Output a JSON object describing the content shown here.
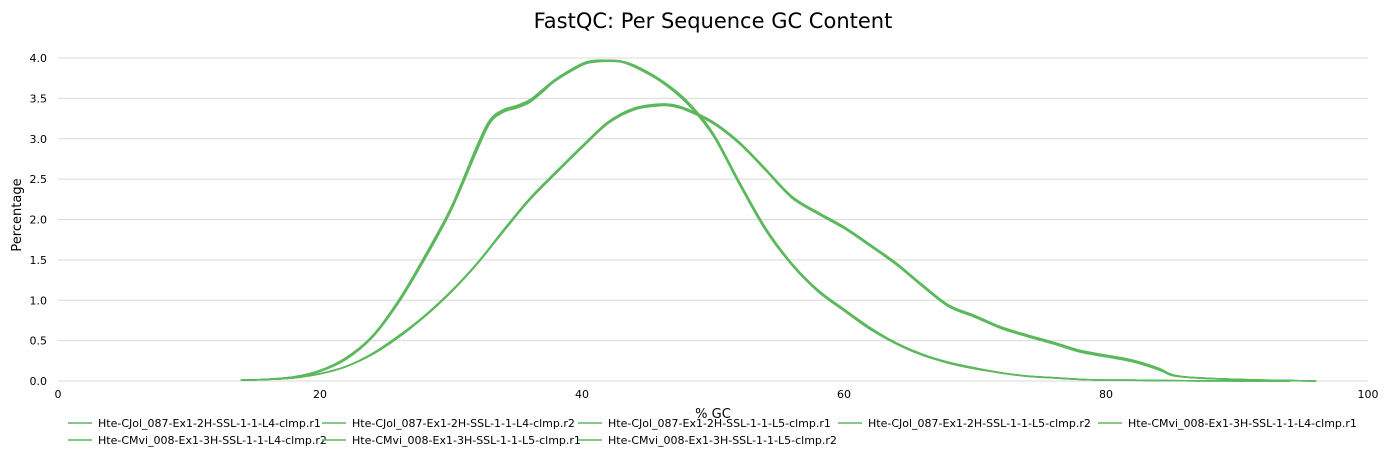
{
  "chart_data": {
    "type": "line",
    "title": "FastQC: Per Sequence GC Content",
    "xlabel": "% GC",
    "ylabel": "Percentage",
    "xlim": [
      0,
      100
    ],
    "ylim": [
      0,
      4.0
    ],
    "xticks": [
      "0",
      "20",
      "40",
      "60",
      "80",
      "100"
    ],
    "yticks": [
      "0.0",
      "0.5",
      "1.0",
      "1.5",
      "2.0",
      "2.5",
      "3.0",
      "3.5",
      "4.0"
    ],
    "grid": "horizontal",
    "legend_position": "bottom",
    "series": [
      {
        "name": "Hte-CJol_087-Ex1-2H-SSL-1-1-L4-clmp.r1",
        "color": "#5cb85c",
        "x": [
          14,
          16,
          18,
          20,
          22,
          24,
          26,
          28,
          30,
          32,
          33,
          34,
          35,
          36,
          37,
          38,
          40,
          41,
          42,
          43,
          44,
          46,
          48,
          50,
          52,
          54,
          56,
          58,
          60,
          62,
          64,
          66,
          68,
          70,
          72,
          74,
          76,
          78,
          80,
          82,
          84,
          86,
          88,
          90,
          92,
          94
        ],
        "y": [
          0.01,
          0.02,
          0.05,
          0.12,
          0.28,
          0.55,
          0.98,
          1.52,
          2.12,
          2.88,
          3.22,
          3.35,
          3.4,
          3.47,
          3.6,
          3.73,
          3.92,
          3.96,
          3.97,
          3.96,
          3.9,
          3.72,
          3.45,
          3.05,
          2.45,
          1.88,
          1.45,
          1.12,
          0.88,
          0.65,
          0.46,
          0.32,
          0.23,
          0.16,
          0.1,
          0.06,
          0.04,
          0.02,
          0.01,
          0.01,
          0.005,
          0.003,
          0.002,
          0.001,
          0.001,
          0.0
        ]
      },
      {
        "name": "Hte-CJol_087-Ex1-2H-SSL-1-1-L4-clmp.r2",
        "color": "#5cb85c",
        "x": [
          14,
          16,
          18,
          20,
          22,
          24,
          26,
          28,
          30,
          32,
          33,
          34,
          35,
          36,
          37,
          38,
          40,
          41,
          42,
          43,
          44,
          46,
          48,
          50,
          52,
          54,
          56,
          58,
          60,
          62,
          64,
          66,
          68,
          70,
          72,
          74,
          76,
          78,
          80,
          82,
          84,
          86,
          88,
          90,
          92,
          94
        ],
        "y": [
          0.01,
          0.02,
          0.05,
          0.13,
          0.29,
          0.56,
          1.0,
          1.55,
          2.15,
          2.92,
          3.24,
          3.36,
          3.41,
          3.48,
          3.61,
          3.74,
          3.93,
          3.97,
          3.97,
          3.96,
          3.91,
          3.73,
          3.47,
          3.07,
          2.47,
          1.9,
          1.46,
          1.13,
          0.89,
          0.66,
          0.47,
          0.33,
          0.23,
          0.16,
          0.1,
          0.06,
          0.04,
          0.02,
          0.01,
          0.01,
          0.005,
          0.003,
          0.002,
          0.001,
          0.001,
          0.0
        ]
      },
      {
        "name": "Hte-CJol_087-Ex1-2H-SSL-1-1-L5-clmp.r1",
        "color": "#5cb85c",
        "x": [
          14,
          16,
          18,
          20,
          22,
          24,
          26,
          28,
          30,
          32,
          33,
          34,
          35,
          36,
          37,
          38,
          40,
          41,
          42,
          43,
          44,
          46,
          48,
          50,
          52,
          54,
          56,
          58,
          60,
          62,
          64,
          66,
          68,
          70,
          72,
          74,
          76,
          78,
          80,
          82,
          84,
          86,
          88,
          90,
          92,
          94
        ],
        "y": [
          0.01,
          0.02,
          0.05,
          0.12,
          0.27,
          0.54,
          0.97,
          1.51,
          2.11,
          2.86,
          3.2,
          3.33,
          3.38,
          3.45,
          3.58,
          3.72,
          3.91,
          3.95,
          3.96,
          3.95,
          3.89,
          3.71,
          3.44,
          3.04,
          2.44,
          1.87,
          1.44,
          1.11,
          0.87,
          0.64,
          0.46,
          0.32,
          0.22,
          0.15,
          0.1,
          0.06,
          0.04,
          0.02,
          0.01,
          0.01,
          0.005,
          0.003,
          0.002,
          0.001,
          0.001,
          0.0
        ]
      },
      {
        "name": "Hte-CJol_087-Ex1-2H-SSL-1-1-L5-clmp.r2",
        "color": "#5cb85c",
        "x": [
          14,
          16,
          18,
          20,
          22,
          24,
          26,
          28,
          30,
          32,
          33,
          34,
          35,
          36,
          37,
          38,
          40,
          41,
          42,
          43,
          44,
          46,
          48,
          50,
          52,
          54,
          56,
          58,
          60,
          62,
          64,
          66,
          68,
          70,
          72,
          74,
          76,
          78,
          80,
          82,
          84,
          86,
          88,
          90,
          92,
          94
        ],
        "y": [
          0.01,
          0.02,
          0.05,
          0.13,
          0.28,
          0.55,
          0.99,
          1.54,
          2.14,
          2.9,
          3.23,
          3.35,
          3.4,
          3.47,
          3.6,
          3.73,
          3.92,
          3.96,
          3.97,
          3.96,
          3.9,
          3.72,
          3.46,
          3.06,
          2.46,
          1.89,
          1.45,
          1.12,
          0.88,
          0.65,
          0.47,
          0.33,
          0.23,
          0.16,
          0.1,
          0.06,
          0.04,
          0.02,
          0.01,
          0.01,
          0.005,
          0.003,
          0.002,
          0.001,
          0.001,
          0.0
        ]
      },
      {
        "name": "Hte-CMvi_008-Ex1-3H-SSL-1-1-L4-clmp.r1",
        "color": "#5cb85c",
        "x": [
          14,
          16,
          18,
          20,
          22,
          24,
          26,
          28,
          30,
          32,
          34,
          36,
          38,
          40,
          42,
          44,
          46,
          47,
          48,
          50,
          52,
          54,
          56,
          58,
          60,
          62,
          64,
          66,
          68,
          70,
          72,
          74,
          76,
          78,
          80,
          82,
          84,
          85,
          86,
          88,
          90,
          92,
          94,
          96
        ],
        "y": [
          0.01,
          0.02,
          0.04,
          0.09,
          0.18,
          0.33,
          0.55,
          0.8,
          1.1,
          1.45,
          1.86,
          2.25,
          2.58,
          2.9,
          3.2,
          3.37,
          3.42,
          3.41,
          3.36,
          3.2,
          2.95,
          2.62,
          2.28,
          2.08,
          1.9,
          1.68,
          1.45,
          1.18,
          0.93,
          0.8,
          0.66,
          0.56,
          0.47,
          0.37,
          0.31,
          0.25,
          0.15,
          0.08,
          0.05,
          0.03,
          0.02,
          0.01,
          0.005,
          0.0
        ]
      },
      {
        "name": "Hte-CMvi_008-Ex1-3H-SSL-1-1-L4-clmp.r2",
        "color": "#5cb85c",
        "x": [
          14,
          16,
          18,
          20,
          22,
          24,
          26,
          28,
          30,
          32,
          34,
          36,
          38,
          40,
          42,
          44,
          46,
          47,
          48,
          50,
          52,
          54,
          56,
          58,
          60,
          62,
          64,
          66,
          68,
          70,
          72,
          74,
          76,
          78,
          80,
          82,
          84,
          85,
          86,
          88,
          90,
          92,
          94,
          96
        ],
        "y": [
          0.01,
          0.02,
          0.04,
          0.09,
          0.18,
          0.34,
          0.56,
          0.81,
          1.11,
          1.46,
          1.87,
          2.26,
          2.59,
          2.91,
          3.21,
          3.38,
          3.43,
          3.42,
          3.37,
          3.21,
          2.96,
          2.63,
          2.29,
          2.09,
          1.91,
          1.69,
          1.46,
          1.19,
          0.94,
          0.81,
          0.67,
          0.57,
          0.48,
          0.38,
          0.32,
          0.26,
          0.16,
          0.08,
          0.05,
          0.03,
          0.02,
          0.01,
          0.005,
          0.0
        ]
      },
      {
        "name": "Hte-CMvi_008-Ex1-3H-SSL-1-1-L5-clmp.r1",
        "color": "#5cb85c",
        "x": [
          14,
          16,
          18,
          20,
          22,
          24,
          26,
          28,
          30,
          32,
          34,
          36,
          38,
          40,
          42,
          44,
          46,
          47,
          48,
          50,
          52,
          54,
          56,
          58,
          60,
          62,
          64,
          66,
          68,
          70,
          72,
          74,
          76,
          78,
          80,
          82,
          84,
          85,
          86,
          88,
          90,
          92,
          94,
          96
        ],
        "y": [
          0.01,
          0.02,
          0.04,
          0.09,
          0.18,
          0.33,
          0.54,
          0.8,
          1.1,
          1.45,
          1.85,
          2.24,
          2.57,
          2.89,
          3.19,
          3.36,
          3.41,
          3.4,
          3.35,
          3.19,
          2.94,
          2.61,
          2.27,
          2.07,
          1.89,
          1.67,
          1.44,
          1.17,
          0.92,
          0.79,
          0.65,
          0.55,
          0.46,
          0.36,
          0.3,
          0.24,
          0.14,
          0.07,
          0.05,
          0.03,
          0.02,
          0.01,
          0.005,
          0.0
        ]
      },
      {
        "name": "Hte-CMvi_008-Ex1-3H-SSL-1-1-L5-clmp.r2",
        "color": "#5cb85c",
        "x": [
          14,
          16,
          18,
          20,
          22,
          24,
          26,
          28,
          30,
          32,
          34,
          36,
          38,
          40,
          42,
          44,
          46,
          47,
          48,
          50,
          52,
          54,
          56,
          58,
          60,
          62,
          64,
          66,
          68,
          70,
          72,
          74,
          76,
          78,
          80,
          82,
          84,
          85,
          86,
          88,
          90,
          92,
          94,
          96
        ],
        "y": [
          0.01,
          0.02,
          0.04,
          0.09,
          0.18,
          0.34,
          0.55,
          0.81,
          1.11,
          1.46,
          1.86,
          2.25,
          2.58,
          2.9,
          3.2,
          3.37,
          3.42,
          3.41,
          3.36,
          3.2,
          2.95,
          2.62,
          2.28,
          2.08,
          1.9,
          1.68,
          1.45,
          1.18,
          0.93,
          0.8,
          0.66,
          0.56,
          0.47,
          0.37,
          0.31,
          0.25,
          0.15,
          0.08,
          0.05,
          0.03,
          0.02,
          0.01,
          0.005,
          0.0
        ]
      }
    ]
  }
}
